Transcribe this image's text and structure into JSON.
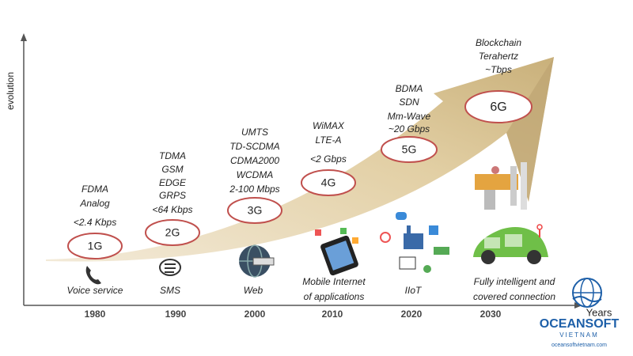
{
  "axes": {
    "y_label": "evolution",
    "x_label": "Years"
  },
  "generations": [
    {
      "label": "1G",
      "techs": [
        "FDMA",
        "Analog",
        "<2.4 Kbps"
      ],
      "application": [
        "Voice service"
      ],
      "year": "1980"
    },
    {
      "label": "2G",
      "techs": [
        "TDMA",
        "GSM",
        "EDGE",
        "GRPS",
        "<64 Kbps"
      ],
      "application": [
        "SMS"
      ],
      "year": "1990"
    },
    {
      "label": "3G",
      "techs": [
        "UMTS",
        "TD-SCDMA",
        "CDMA2000",
        "WCDMA",
        "2-100 Mbps"
      ],
      "application": [
        "Web"
      ],
      "year": "2000"
    },
    {
      "label": "4G",
      "techs": [
        "WiMAX",
        "LTE-A",
        "<2 Gbps"
      ],
      "application": [
        "Mobile Internet",
        "of applications"
      ],
      "year": "2010"
    },
    {
      "label": "5G",
      "techs": [
        "BDMA",
        "SDN",
        "Mm-Wave",
        "~20 Gbps"
      ],
      "application": [
        "IIoT"
      ],
      "year": "2020"
    },
    {
      "label": "6G",
      "techs": [
        "Blockchain",
        "Terahertz",
        "~Tbps"
      ],
      "application": [
        "Fully intelligent and",
        "covered connection"
      ],
      "year": "2030"
    }
  ],
  "logo": {
    "name": "OCEANSOFT",
    "country": "VIETNAM",
    "url": "oceansoftvietnam.com"
  }
}
